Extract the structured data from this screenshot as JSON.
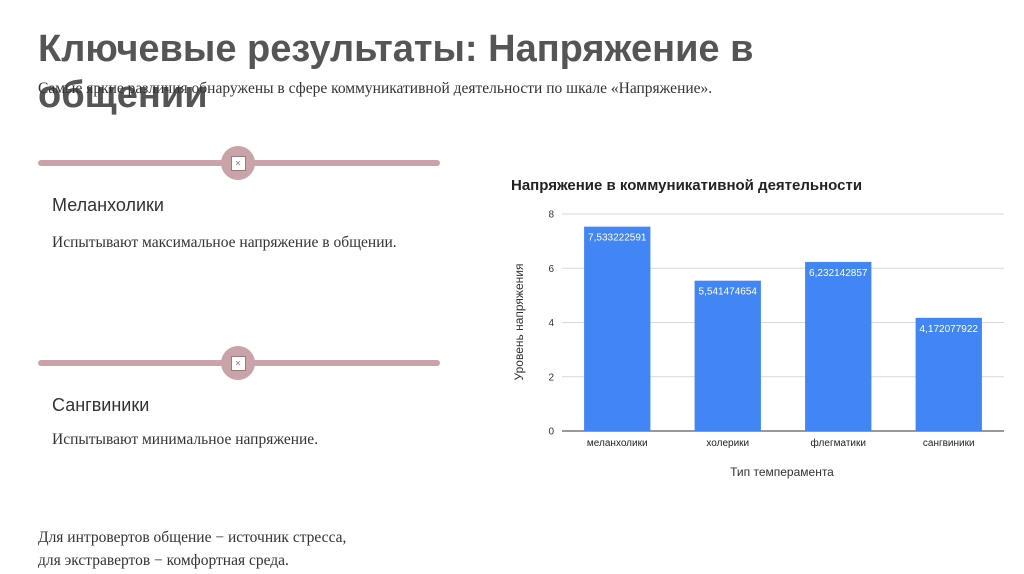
{
  "slide": {
    "title": "Ключевые результаты: Напряжение в общении",
    "subtitle": "Самые яркие различия обнаружены в сфере коммуникативной деятельности по шкале «Напряжение».",
    "sections": [
      {
        "heading": "Меланхолики",
        "text": "Испытывают максимальное напряжение в общении."
      },
      {
        "heading": "Сангвиники",
        "text": "Испытывают минимальное напряжение."
      }
    ],
    "note_lines": [
      "Для интровертов общение − источник стресса,",
      "для экстравертов − комфортная среда."
    ],
    "accent_color": "#c9a3a8"
  },
  "chart_data": {
    "type": "bar",
    "title": "Напряжение в коммуникативной деятельности",
    "xlabel": "Тип темперамента",
    "ylabel": "Уровень напряжения",
    "categories": [
      "меланхолики",
      "холерики",
      "флегматики",
      "сангвиники"
    ],
    "values": [
      7.533222591,
      5.541474654,
      6.232142857,
      4.172077922
    ],
    "data_labels": [
      "7,533222591",
      "5,541474654",
      "6,232142857",
      "4,172077922"
    ],
    "ylim": [
      0,
      8
    ],
    "yticks": [
      0,
      2,
      4,
      6,
      8
    ],
    "grid": true,
    "bar_color": "#4285f4"
  }
}
